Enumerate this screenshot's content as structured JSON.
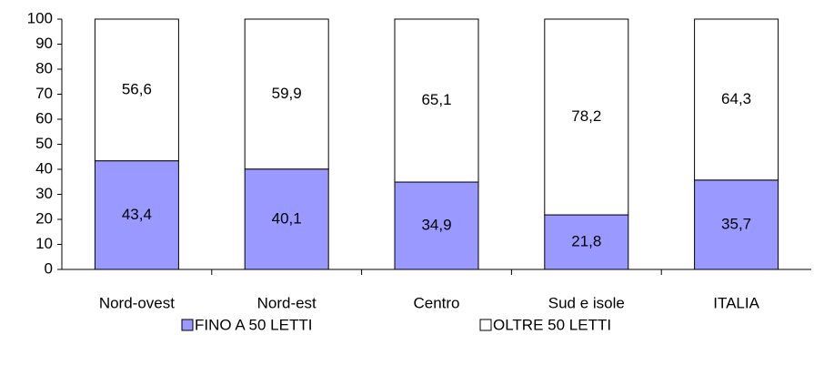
{
  "chart_data": {
    "type": "stacked_bar",
    "categories": [
      "Nord-ovest",
      "Nord-est",
      "Centro",
      "Sud e isole",
      "ITALIA"
    ],
    "series": [
      {
        "name": "FINO A 50 LETTI",
        "color": "#9999ff",
        "values": [
          43.4,
          40.1,
          34.9,
          21.8,
          35.7
        ],
        "value_labels": [
          "43,4",
          "40,1",
          "34,9",
          "21,8",
          "35,7"
        ]
      },
      {
        "name": "OLTRE 50 LETTI",
        "color": "#ffffff",
        "values": [
          56.6,
          59.9,
          65.1,
          78.2,
          64.3
        ],
        "value_labels": [
          "56,6",
          "59,9",
          "65,1",
          "78,2",
          "64,3"
        ]
      }
    ],
    "ylim": [
      0,
      100
    ],
    "yticks": [
      0,
      10,
      20,
      30,
      40,
      50,
      60,
      70,
      80,
      90,
      100
    ],
    "grid": false,
    "legend": "bottom"
  }
}
